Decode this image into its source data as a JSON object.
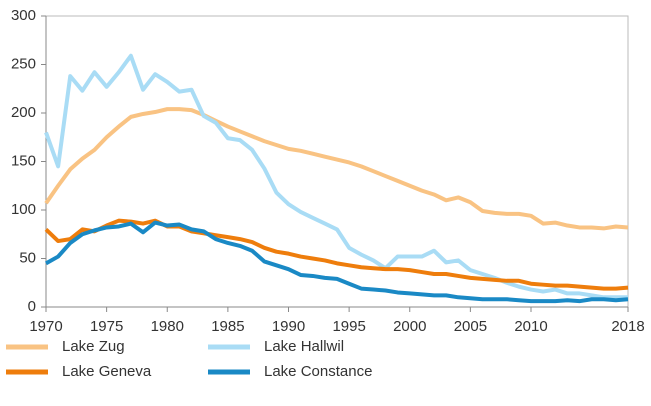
{
  "chart_data": {
    "type": "line",
    "x": [
      1970,
      1971,
      1972,
      1973,
      1974,
      1975,
      1976,
      1977,
      1978,
      1979,
      1980,
      1981,
      1982,
      1983,
      1984,
      1985,
      1986,
      1987,
      1988,
      1989,
      1990,
      1991,
      1992,
      1993,
      1994,
      1995,
      1996,
      1997,
      1998,
      1999,
      2000,
      2001,
      2002,
      2003,
      2004,
      2005,
      2006,
      2007,
      2008,
      2009,
      2010,
      2011,
      2012,
      2013,
      2014,
      2015,
      2016,
      2017,
      2018
    ],
    "series": [
      {
        "name": "Lake Zug",
        "color": "#f9c383",
        "values": [
          107,
          125,
          142,
          153,
          162,
          175,
          186,
          196,
          199,
          201,
          204,
          204,
          203,
          198,
          192,
          186,
          181,
          176,
          171,
          167,
          163,
          161,
          158,
          155,
          152,
          149,
          145,
          140,
          135,
          130,
          125,
          120,
          116,
          110,
          113,
          108,
          99,
          97,
          96,
          96,
          94,
          86,
          87,
          84,
          82,
          82,
          81,
          83,
          82
        ]
      },
      {
        "name": "Lake Hallwil",
        "color": "#a9dcf5",
        "values": [
          180,
          145,
          238,
          223,
          242,
          227,
          242,
          259,
          224,
          240,
          232,
          222,
          224,
          197,
          190,
          174,
          172,
          162,
          143,
          118,
          106,
          98,
          92,
          86,
          80,
          61,
          54,
          48,
          40,
          52,
          52,
          52,
          58,
          46,
          48,
          38,
          34,
          30,
          25,
          21,
          18,
          16,
          18,
          14,
          14,
          12,
          10,
          10,
          10
        ]
      },
      {
        "name": "Lake Geneva",
        "color": "#ee7d0c",
        "values": [
          80,
          68,
          70,
          80,
          78,
          84,
          89,
          88,
          86,
          89,
          83,
          83,
          78,
          76,
          74,
          72,
          70,
          67,
          61,
          57,
          55,
          52,
          50,
          48,
          45,
          43,
          41,
          40,
          39,
          39,
          38,
          36,
          34,
          34,
          32,
          30,
          29,
          28,
          27,
          27,
          24,
          23,
          22,
          22,
          21,
          20,
          19,
          19,
          20
        ]
      },
      {
        "name": "Lake Constance",
        "color": "#1a89c5",
        "values": [
          45,
          52,
          66,
          75,
          79,
          82,
          83,
          86,
          77,
          87,
          84,
          85,
          80,
          78,
          70,
          66,
          63,
          58,
          47,
          43,
          39,
          33,
          32,
          30,
          29,
          24,
          19,
          18,
          17,
          15,
          14,
          13,
          12,
          12,
          10,
          9,
          8,
          8,
          8,
          7,
          6,
          6,
          6,
          7,
          6,
          8,
          8,
          7,
          8
        ]
      }
    ],
    "xlim": [
      1970,
      2018
    ],
    "xticks": [
      1970,
      1975,
      1980,
      1985,
      1990,
      1995,
      2000,
      2005,
      2010,
      2018
    ],
    "ylim": [
      0,
      300
    ],
    "yticks": [
      0,
      50,
      100,
      150,
      200,
      250,
      300
    ],
    "legend": "bottom"
  }
}
